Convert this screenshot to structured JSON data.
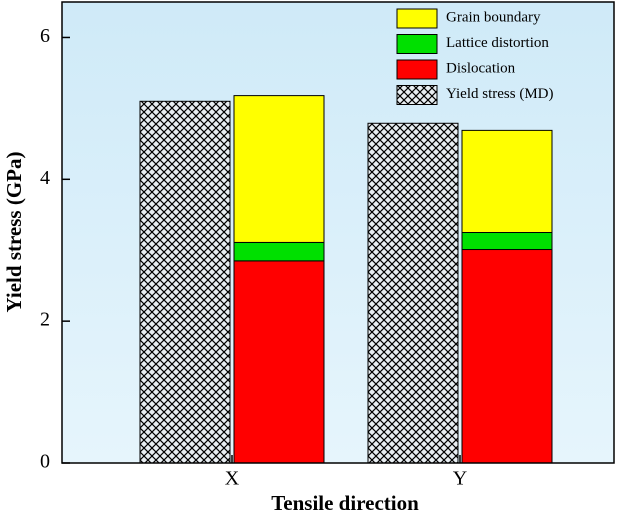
{
  "chart_data": {
    "type": "bar",
    "y_label": "Yield stress (GPa)",
    "x_label": "Tensile direction",
    "categories": [
      "X",
      "Y"
    ],
    "series": [
      {
        "name": "Grain boundary",
        "color": "#ffff00",
        "values": [
          2.07,
          1.44
        ]
      },
      {
        "name": "Lattice distortion",
        "color": "#00e000",
        "values": [
          0.26,
          0.24
        ]
      },
      {
        "name": "Dislocation",
        "color": "#ff0000",
        "values": [
          2.85,
          3.01
        ]
      },
      {
        "name": "Yield stress (MD)",
        "color": "#000000",
        "pattern": "crosshatch",
        "values": [
          5.1,
          4.79
        ]
      }
    ],
    "ylim": [
      0,
      6.5
    ],
    "yticks": [
      0,
      2,
      4,
      6
    ],
    "legend": "top-right"
  }
}
